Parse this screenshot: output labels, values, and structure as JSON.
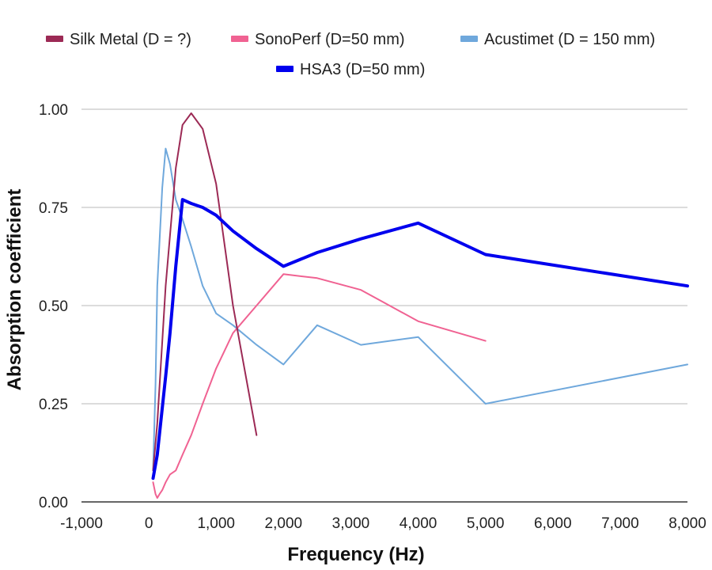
{
  "chart_data": {
    "type": "line",
    "title": "",
    "xlabel": "Frequency (Hz)",
    "ylabel": "Absorption coefficient",
    "xlim": [
      -1000,
      8000
    ],
    "ylim": [
      0,
      1
    ],
    "x_ticks": [
      -1000,
      0,
      1000,
      2000,
      3000,
      4000,
      5000,
      6000,
      7000,
      8000
    ],
    "x_tick_labels": [
      "-1,000",
      "0",
      "1,000",
      "2,000",
      "3,000",
      "4,000",
      "5,000",
      "6,000",
      "7,000",
      "8,000"
    ],
    "y_ticks": [
      0,
      0.25,
      0.5,
      0.75,
      1.0
    ],
    "y_tick_labels": [
      "0.00",
      "0.25",
      "0.50",
      "0.75",
      "1.00"
    ],
    "grid": true,
    "legend_position": "top",
    "series": [
      {
        "name": "Silk Metal (D = ?)",
        "color": "#9c2a55",
        "width": 2,
        "x": [
          63,
          125,
          250,
          400,
          500,
          630,
          800,
          1000,
          1250,
          1600
        ],
        "y": [
          0.08,
          0.2,
          0.55,
          0.85,
          0.96,
          0.99,
          0.95,
          0.81,
          0.5,
          0.17
        ]
      },
      {
        "name": "SonoPerf (D=50 mm)",
        "color": "#f06292",
        "width": 2,
        "x": [
          63,
          100,
          125,
          160,
          200,
          250,
          315,
          400,
          500,
          630,
          800,
          1000,
          1250,
          1600,
          2000,
          2500,
          3150,
          4000,
          5000
        ],
        "y": [
          0.05,
          0.02,
          0.01,
          0.02,
          0.03,
          0.05,
          0.07,
          0.08,
          0.12,
          0.17,
          0.25,
          0.34,
          0.43,
          0.5,
          0.58,
          0.57,
          0.54,
          0.46,
          0.41
        ]
      },
      {
        "name": "Acustimet (D = 150 mm)",
        "color": "#6fa8dc",
        "width": 2,
        "x": [
          63,
          100,
          125,
          200,
          250,
          315,
          400,
          500,
          630,
          800,
          1000,
          1250,
          1600,
          2000,
          2500,
          3150,
          4000,
          5000,
          8000
        ],
        "y": [
          0.08,
          0.3,
          0.55,
          0.8,
          0.9,
          0.86,
          0.77,
          0.72,
          0.65,
          0.55,
          0.48,
          0.45,
          0.4,
          0.35,
          0.45,
          0.4,
          0.42,
          0.25,
          0.35
        ]
      },
      {
        "name": "HSA3 (D=50 mm)",
        "color": "#0000ee",
        "width": 4,
        "x": [
          63,
          125,
          250,
          315,
          400,
          500,
          630,
          800,
          1000,
          1250,
          1600,
          2000,
          2500,
          3150,
          4000,
          5000,
          8000
        ],
        "y": [
          0.06,
          0.12,
          0.32,
          0.43,
          0.6,
          0.77,
          0.76,
          0.75,
          0.73,
          0.69,
          0.645,
          0.6,
          0.635,
          0.67,
          0.71,
          0.63,
          0.55
        ]
      }
    ]
  }
}
